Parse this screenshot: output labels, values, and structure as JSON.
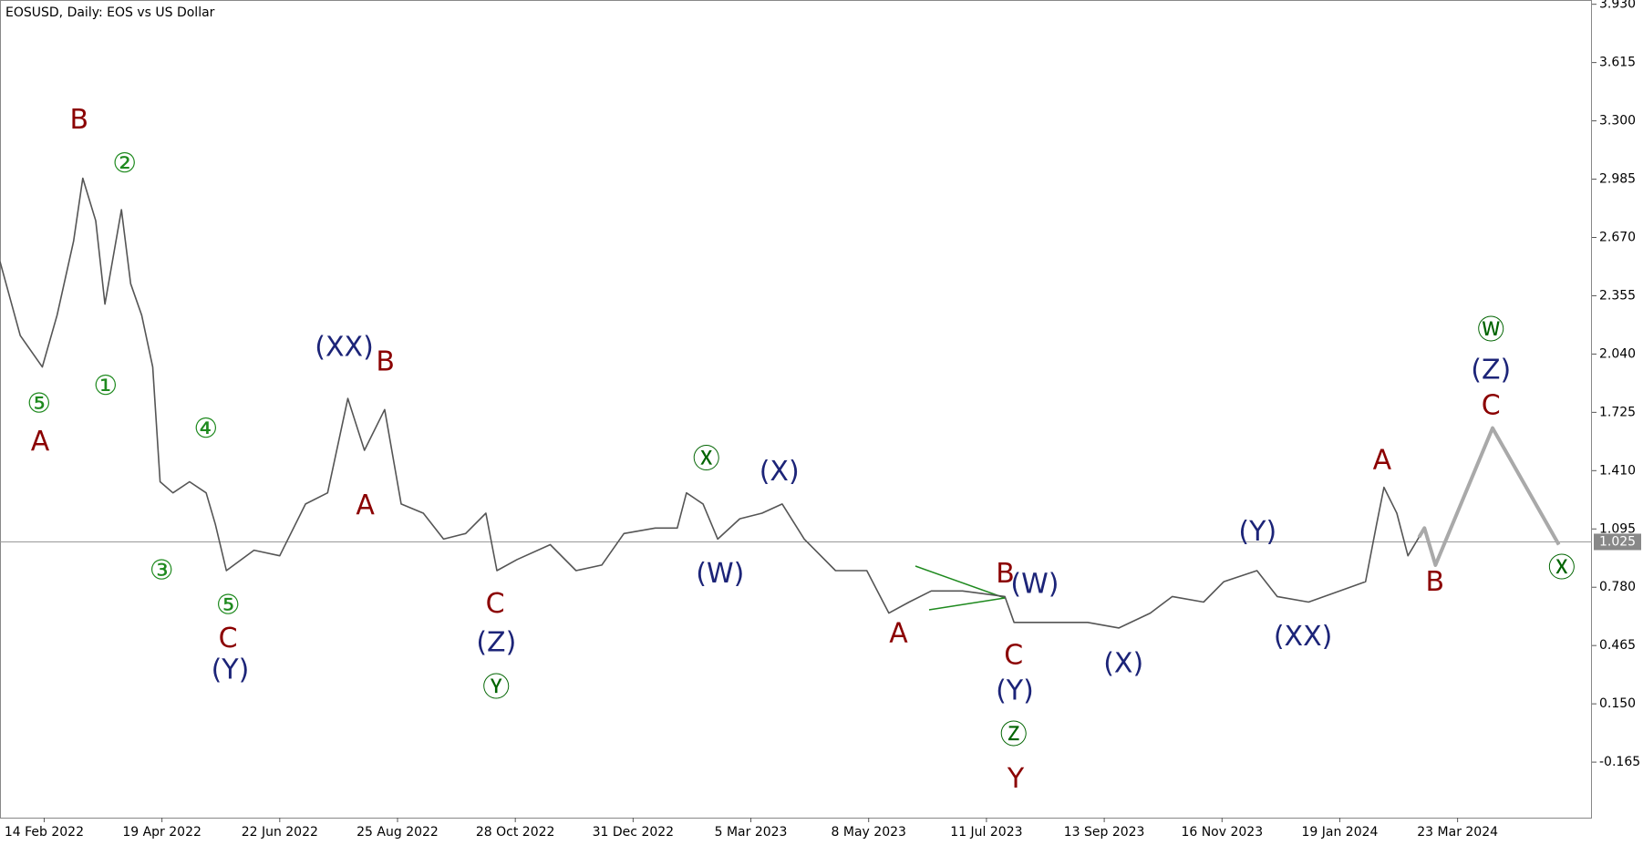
{
  "chart_data": {
    "type": "line",
    "title": "EOSUSD, Daily:  EOS vs US Dollar",
    "xlim": [
      "2022-01-21",
      "2024-06-04"
    ],
    "xticks": [
      {
        "value": "2022-02-14",
        "label": "14 Feb 2022"
      },
      {
        "value": "2022-04-19",
        "label": "19 Apr 2022"
      },
      {
        "value": "2022-06-22",
        "label": "22 Jun 2022"
      },
      {
        "value": "2022-08-25",
        "label": "25 Aug 2022"
      },
      {
        "value": "2022-10-28",
        "label": "28 Oct 2022"
      },
      {
        "value": "2022-12-31",
        "label": "31 Dec 2022"
      },
      {
        "value": "2023-03-05",
        "label": "5 Mar 2023"
      },
      {
        "value": "2023-05-08",
        "label": "8 May 2023"
      },
      {
        "value": "2023-07-11",
        "label": "11 Jul 2023"
      },
      {
        "value": "2023-09-13",
        "label": "13 Sep 2023"
      },
      {
        "value": "2023-11-16",
        "label": "16 Nov 2023"
      },
      {
        "value": "2024-01-19",
        "label": "19 Jan 2024"
      },
      {
        "value": "2024-03-23",
        "label": "23 Mar 2024"
      }
    ],
    "ylim": [
      -0.465,
      3.953
    ],
    "yticks": [
      -0.165,
      {
        "value": 0.15,
        "label": "0.150"
      },
      0.465,
      {
        "value": 0.78,
        "label": "0.780"
      },
      1.095,
      {
        "value": 1.41,
        "label": "1.410"
      },
      1.725,
      {
        "value": 2.04,
        "label": "2.040"
      },
      2.355,
      {
        "value": 2.67,
        "label": "2.670"
      },
      2.985,
      {
        "value": 3.3,
        "label": "3.300"
      },
      3.615,
      {
        "value": 3.93,
        "label": "3.930"
      }
    ],
    "current_price": 1.025,
    "series": [
      {
        "color": "#555555",
        "x": [
          "2022-01-21",
          "2022-02-01",
          "2022-02-13",
          "2022-02-21",
          "2022-03-02",
          "2022-03-07",
          "2022-03-14",
          "2022-03-19",
          "2022-03-28",
          "2022-04-02",
          "2022-04-08",
          "2022-04-14",
          "2022-04-18",
          "2022-04-25",
          "2022-05-04",
          "2022-05-13",
          "2022-05-18",
          "2022-05-24",
          "2022-06-08",
          "2022-06-22",
          "2022-07-06",
          "2022-07-18",
          "2022-07-29",
          "2022-08-07",
          "2022-08-18",
          "2022-08-27",
          "2022-09-08",
          "2022-09-19",
          "2022-10-01",
          "2022-10-12",
          "2022-10-18",
          "2022-10-29",
          "2022-11-16",
          "2022-11-30",
          "2022-12-14",
          "2022-12-26",
          "2023-01-12",
          "2023-01-24",
          "2023-01-29",
          "2023-02-07",
          "2023-02-15",
          "2023-02-27",
          "2023-03-11",
          "2023-03-22",
          "2023-04-03",
          "2023-04-20",
          "2023-05-07",
          "2023-05-19",
          "2023-05-30",
          "2023-06-11",
          "2023-06-28",
          "2023-07-21",
          "2023-07-26",
          "2023-08-12",
          "2023-09-04",
          "2023-09-21",
          "2023-10-08",
          "2023-10-20",
          "2023-11-06",
          "2023-11-17",
          "2023-12-05",
          "2023-12-16",
          "2024-01-02",
          "2024-01-19",
          "2024-02-02",
          "2024-02-08",
          "2024-02-12",
          "2024-02-19",
          "2024-02-25",
          "2024-03-02"
        ],
        "values": [
          2.54,
          2.14,
          1.97,
          2.25,
          2.65,
          2.99,
          2.76,
          2.31,
          2.82,
          2.42,
          2.25,
          1.97,
          1.35,
          1.29,
          1.35,
          1.29,
          1.12,
          0.87,
          0.98,
          0.95,
          1.23,
          1.29,
          1.8,
          1.52,
          1.74,
          1.23,
          1.18,
          1.04,
          1.07,
          1.18,
          0.87,
          0.93,
          1.01,
          0.87,
          0.9,
          1.07,
          1.1,
          1.1,
          1.29,
          1.23,
          1.04,
          1.15,
          1.18,
          1.23,
          1.04,
          0.87,
          0.87,
          0.64,
          0.7,
          0.76,
          0.76,
          0.73,
          0.59,
          0.59,
          0.59,
          0.56,
          0.64,
          0.73,
          0.7,
          0.81,
          0.87,
          0.73,
          0.7,
          0.76,
          0.81,
          1.12,
          1.32,
          1.18,
          0.95,
          1.05
        ]
      },
      {
        "color": "#a9a9a9",
        "x": [
          "2024-03-02",
          "2024-03-05",
          "2024-03-11",
          "2024-04-11",
          "2024-05-17"
        ],
        "values": [
          1.05,
          1.1,
          0.9,
          1.64,
          1.01
        ]
      }
    ],
    "annotations": [
      {
        "text": "B",
        "color": "#8b0000"
      },
      {
        "text": "②",
        "color": "#1f8a1f"
      },
      {
        "text": "⑤",
        "color": "#1f8a1f"
      },
      {
        "text": "A",
        "color": "#8b0000"
      },
      {
        "text": "①",
        "color": "#1f8a1f"
      },
      {
        "text": "④",
        "color": "#1f8a1f"
      },
      {
        "text": "③",
        "color": "#1f8a1f"
      },
      {
        "text": "⑤",
        "color": "#1f8a1f"
      },
      {
        "text": "C",
        "color": "#8b0000"
      },
      {
        "text": "(Y)",
        "color": "#1c2478"
      },
      {
        "text": "(XX)",
        "color": "#1c2478"
      },
      {
        "text": "B",
        "color": "#8b0000"
      },
      {
        "text": "A",
        "color": "#8b0000"
      },
      {
        "text": "C",
        "color": "#8b0000"
      },
      {
        "text": "(Z)",
        "color": "#1c2478"
      },
      {
        "text": "Ⓨ",
        "color": "#006400"
      },
      {
        "text": "Ⓧ",
        "color": "#006400"
      },
      {
        "text": "(X)",
        "color": "#1c2478"
      },
      {
        "text": "(W)",
        "color": "#1c2478"
      },
      {
        "text": "A",
        "color": "#8b0000"
      },
      {
        "text": "B",
        "color": "#8b0000"
      },
      {
        "text": "(W)",
        "color": "#1c2478"
      },
      {
        "text": "C",
        "color": "#8b0000"
      },
      {
        "text": "(Y)",
        "color": "#1c2478"
      },
      {
        "text": "Ⓩ",
        "color": "#006400"
      },
      {
        "text": "Y",
        "color": "#8b0000"
      },
      {
        "text": "(X)",
        "color": "#1c2478"
      },
      {
        "text": "(Y)",
        "color": "#1c2478"
      },
      {
        "text": "(XX)",
        "color": "#1c2478"
      },
      {
        "text": "A",
        "color": "#8b0000"
      },
      {
        "text": "B",
        "color": "#8b0000"
      },
      {
        "text": "Ⓦ",
        "color": "#006400"
      },
      {
        "text": "(Z)",
        "color": "#1c2478"
      },
      {
        "text": "C",
        "color": "#8b0000"
      },
      {
        "text": "Ⓧ",
        "color": "#006400"
      }
    ]
  }
}
